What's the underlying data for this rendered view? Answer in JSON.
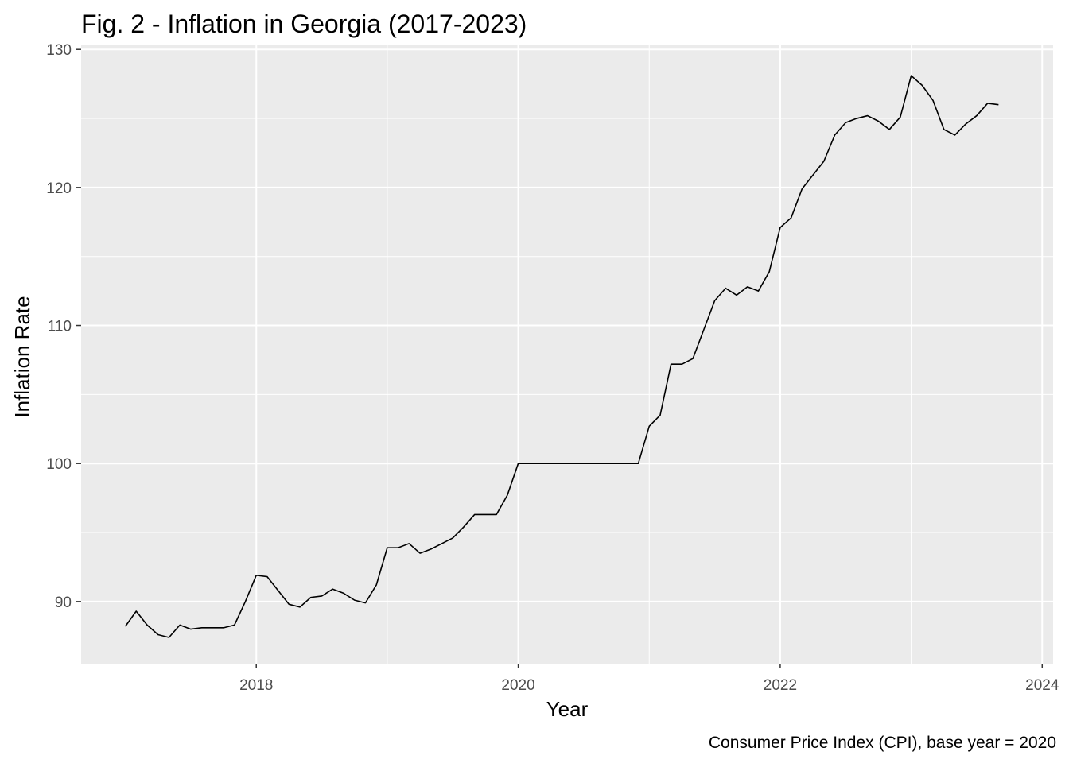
{
  "chart_data": {
    "type": "line",
    "title": "Fig. 2 - Inflation in Georgia (2017-2023)",
    "xlabel": "Year",
    "ylabel": "Inflation Rate",
    "caption": "Consumer Price Index (CPI), base year = 2020",
    "x_ticks": [
      "2018",
      "2020",
      "2022",
      "2024"
    ],
    "y_ticks": [
      "90",
      "100",
      "110",
      "120",
      "130"
    ],
    "xlim": [
      "2016-08-30",
      "2024-02-01"
    ],
    "ylim": [
      85.5,
      130.3
    ],
    "grid": true,
    "legend": "none",
    "colors": {
      "panel_background": "#ebebeb",
      "grid": "#ffffff",
      "line": "#000000",
      "tick_label": "#4d4d4d",
      "tick_mark": "#333333"
    },
    "series": [
      {
        "x": [
          "2017-01",
          "2017-02",
          "2017-03",
          "2017-04",
          "2017-05",
          "2017-06",
          "2017-07",
          "2017-08",
          "2017-09",
          "2017-10",
          "2017-11",
          "2017-12",
          "2018-01",
          "2018-02",
          "2018-03",
          "2018-04",
          "2018-05",
          "2018-06",
          "2018-07",
          "2018-08",
          "2018-09",
          "2018-10",
          "2018-11",
          "2018-12",
          "2019-01",
          "2019-02",
          "2019-03",
          "2019-04",
          "2019-05",
          "2019-06",
          "2019-07",
          "2019-08",
          "2019-09",
          "2019-10",
          "2019-11",
          "2019-12",
          "2020-01",
          "2020-02",
          "2020-03",
          "2020-04",
          "2020-05",
          "2020-06",
          "2020-07",
          "2020-08",
          "2020-09",
          "2020-10",
          "2020-11",
          "2020-12",
          "2021-01",
          "2021-02",
          "2021-03",
          "2021-04",
          "2021-05",
          "2021-06",
          "2021-07",
          "2021-08",
          "2021-09",
          "2021-10",
          "2021-11",
          "2021-12",
          "2022-01",
          "2022-02",
          "2022-03",
          "2022-04",
          "2022-05",
          "2022-06",
          "2022-07",
          "2022-08",
          "2022-09",
          "2022-10",
          "2022-11",
          "2022-12",
          "2023-01",
          "2023-02",
          "2023-03",
          "2023-04",
          "2023-05",
          "2023-06",
          "2023-07",
          "2023-08",
          "2023-09"
        ],
        "values": [
          88.2,
          89.3,
          88.3,
          87.6,
          87.4,
          88.3,
          88.0,
          88.1,
          88.1,
          88.1,
          88.3,
          90.0,
          91.9,
          91.8,
          90.8,
          89.8,
          89.6,
          90.3,
          90.4,
          90.9,
          90.6,
          90.1,
          89.9,
          91.2,
          93.9,
          93.9,
          94.2,
          93.5,
          93.8,
          94.2,
          94.6,
          95.4,
          96.3,
          96.3,
          96.3,
          97.7,
          100.0,
          100.0,
          100.0,
          100.0,
          100.0,
          100.0,
          100.0,
          100.0,
          100.0,
          100.0,
          100.0,
          100.0,
          102.7,
          103.5,
          107.2,
          107.2,
          107.6,
          109.7,
          111.8,
          112.7,
          112.2,
          112.8,
          112.5,
          113.9,
          117.1,
          117.8,
          119.9,
          120.9,
          121.9,
          123.8,
          124.7,
          125.0,
          125.2,
          124.8,
          124.2,
          125.1,
          128.1,
          127.4,
          126.3,
          124.2,
          123.8,
          124.6,
          125.2,
          126.1,
          126.0
        ]
      }
    ]
  }
}
